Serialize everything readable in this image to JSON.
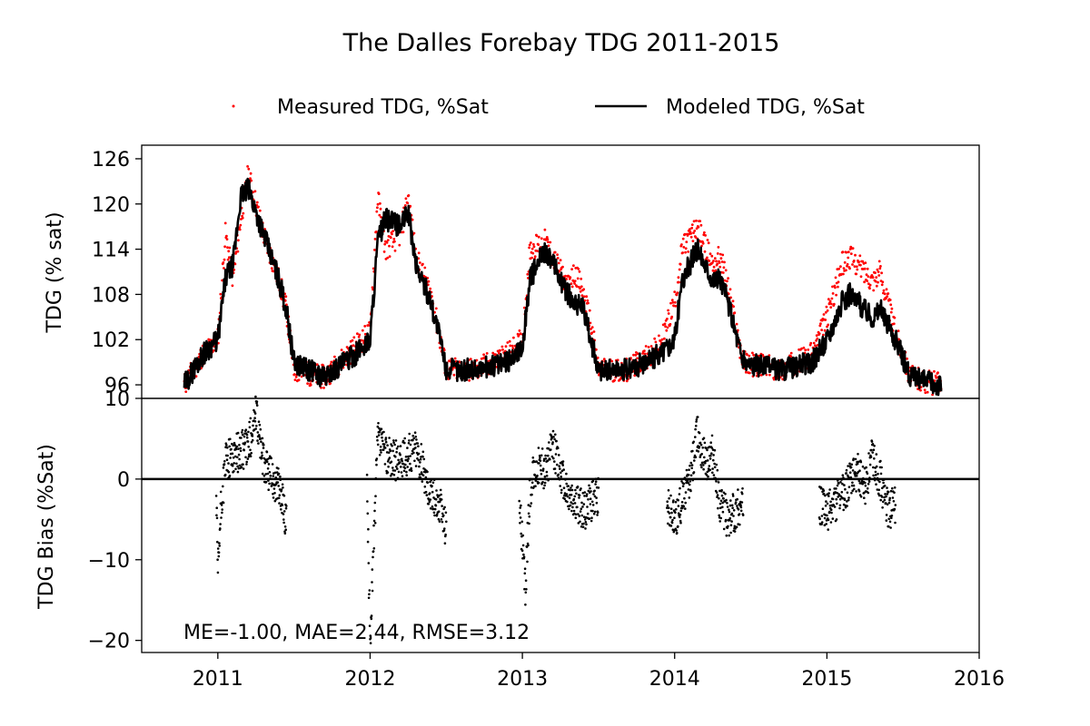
{
  "chart_data": [
    {
      "type": "line",
      "title": "The Dalles Forebay TDG 2011-2015",
      "ylabel": "TDG (% sat)",
      "xlim": [
        2010.5,
        2016.0
      ],
      "ylim": [
        94.2,
        127.8
      ],
      "yticks": [
        96,
        102,
        108,
        114,
        120,
        126
      ],
      "grid": false,
      "legend": {
        "placement": "top-center",
        "ncol": 2
      },
      "series": [
        {
          "name": "Measured TDG, %Sat",
          "style": "points",
          "color": "#ff0000",
          "x": [
            2010.78,
            2010.9,
            2011.0,
            2011.05,
            2011.1,
            2011.15,
            2011.2,
            2011.3,
            2011.4,
            2011.45,
            2011.5,
            2011.7,
            2011.9,
            2012.0,
            2012.05,
            2012.1,
            2012.2,
            2012.25,
            2012.3,
            2012.4,
            2012.45,
            2012.5,
            2012.7,
            2012.9,
            2013.0,
            2013.05,
            2013.15,
            2013.3,
            2013.35,
            2013.4,
            2013.45,
            2013.5,
            2013.7,
            2013.9,
            2014.0,
            2014.05,
            2014.15,
            2014.25,
            2014.3,
            2014.35,
            2014.45,
            2014.7,
            2014.9,
            2015.0,
            2015.1,
            2015.15,
            2015.3,
            2015.35,
            2015.45,
            2015.55,
            2015.75
          ],
          "y": [
            96,
            100,
            102,
            116,
            110,
            118,
            124,
            116,
            110,
            106,
            98,
            97,
            101,
            103,
            121,
            114,
            116,
            121,
            113,
            108,
            103,
            98,
            98,
            100,
            102,
            114,
            115,
            109,
            111,
            108,
            104,
            98,
            98,
            101,
            107,
            114,
            117,
            112,
            113,
            109,
            99,
            98,
            100,
            105,
            112,
            113,
            110,
            111,
            103,
            97,
            96
          ]
        },
        {
          "name": "Modeled TDG, %Sat",
          "style": "line",
          "color": "#000000",
          "x": [
            2010.78,
            2010.9,
            2011.0,
            2011.05,
            2011.1,
            2011.15,
            2011.2,
            2011.3,
            2011.4,
            2011.45,
            2011.5,
            2011.7,
            2011.9,
            2012.0,
            2012.05,
            2012.1,
            2012.2,
            2012.25,
            2012.3,
            2012.4,
            2012.45,
            2012.5,
            2012.7,
            2012.9,
            2013.0,
            2013.05,
            2013.15,
            2013.3,
            2013.35,
            2013.4,
            2013.45,
            2013.5,
            2013.7,
            2013.9,
            2014.0,
            2014.05,
            2014.15,
            2014.25,
            2014.3,
            2014.35,
            2014.45,
            2014.7,
            2014.9,
            2015.0,
            2015.1,
            2015.15,
            2015.3,
            2015.35,
            2015.45,
            2015.55,
            2015.75
          ],
          "y": [
            96,
            100,
            102,
            110,
            112,
            121,
            122,
            116,
            110,
            106,
            99,
            97,
            100,
            102,
            115,
            118,
            117,
            119,
            112,
            107,
            103,
            98,
            98,
            99,
            101,
            110,
            114,
            108,
            107,
            106,
            102,
            98,
            98,
            100,
            102,
            110,
            114,
            110,
            110,
            107,
            99,
            98,
            99,
            102,
            107,
            108,
            105,
            106,
            102,
            97,
            96
          ]
        }
      ]
    },
    {
      "type": "scatter",
      "xlabel": "",
      "ylabel": "TDG Bias (%Sat)",
      "xlim": [
        2010.5,
        2016.0
      ],
      "ylim": [
        -21.5,
        10
      ],
      "yticks": [
        -20,
        -10,
        0,
        10
      ],
      "xticks": [
        2011,
        2012,
        2013,
        2014,
        2015,
        2016
      ],
      "hline": 0,
      "annotation": "ME=-1.00, MAE=2.44, RMSE=3.12",
      "grid": false,
      "series": [
        {
          "color": "#000000",
          "segments": [
            {
              "x": [
                2010.99,
                2011.0,
                2011.02,
                2011.05,
                2011.1,
                2011.2,
                2011.25,
                2011.3,
                2011.4,
                2011.45
              ],
              "y": [
                -2,
                -12,
                -4,
                2,
                3,
                4,
                8,
                2,
                -1,
                -5
              ]
            },
            {
              "x": [
                2011.98,
                2012.0,
                2012.02,
                2012.05,
                2012.1,
                2012.2,
                2012.3,
                2012.4,
                2012.45,
                2012.5
              ],
              "y": [
                -1,
                -20,
                -10,
                5,
                3,
                2,
                4,
                -2,
                -3,
                -6
              ]
            },
            {
              "x": [
                2012.98,
                2013.02,
                2013.05,
                2013.1,
                2013.15,
                2013.2,
                2013.3,
                2013.4,
                2013.45,
                2013.5
              ],
              "y": [
                -2,
                -14,
                -1,
                2,
                1,
                4,
                -2,
                -4,
                -3,
                -2
              ]
            },
            {
              "x": [
                2013.95,
                2014.0,
                2014.1,
                2014.15,
                2014.2,
                2014.25,
                2014.3,
                2014.35,
                2014.4,
                2014.45
              ],
              "y": [
                -3,
                -5,
                0,
                6,
                2,
                3,
                -3,
                -5,
                -4,
                -3
              ]
            },
            {
              "x": [
                2014.95,
                2015.0,
                2015.1,
                2015.2,
                2015.25,
                2015.3,
                2015.35,
                2015.4,
                2015.45
              ],
              "y": [
                -3,
                -4,
                -2,
                1,
                -1,
                3,
                0,
                -4,
                -3
              ]
            }
          ]
        }
      ]
    }
  ]
}
